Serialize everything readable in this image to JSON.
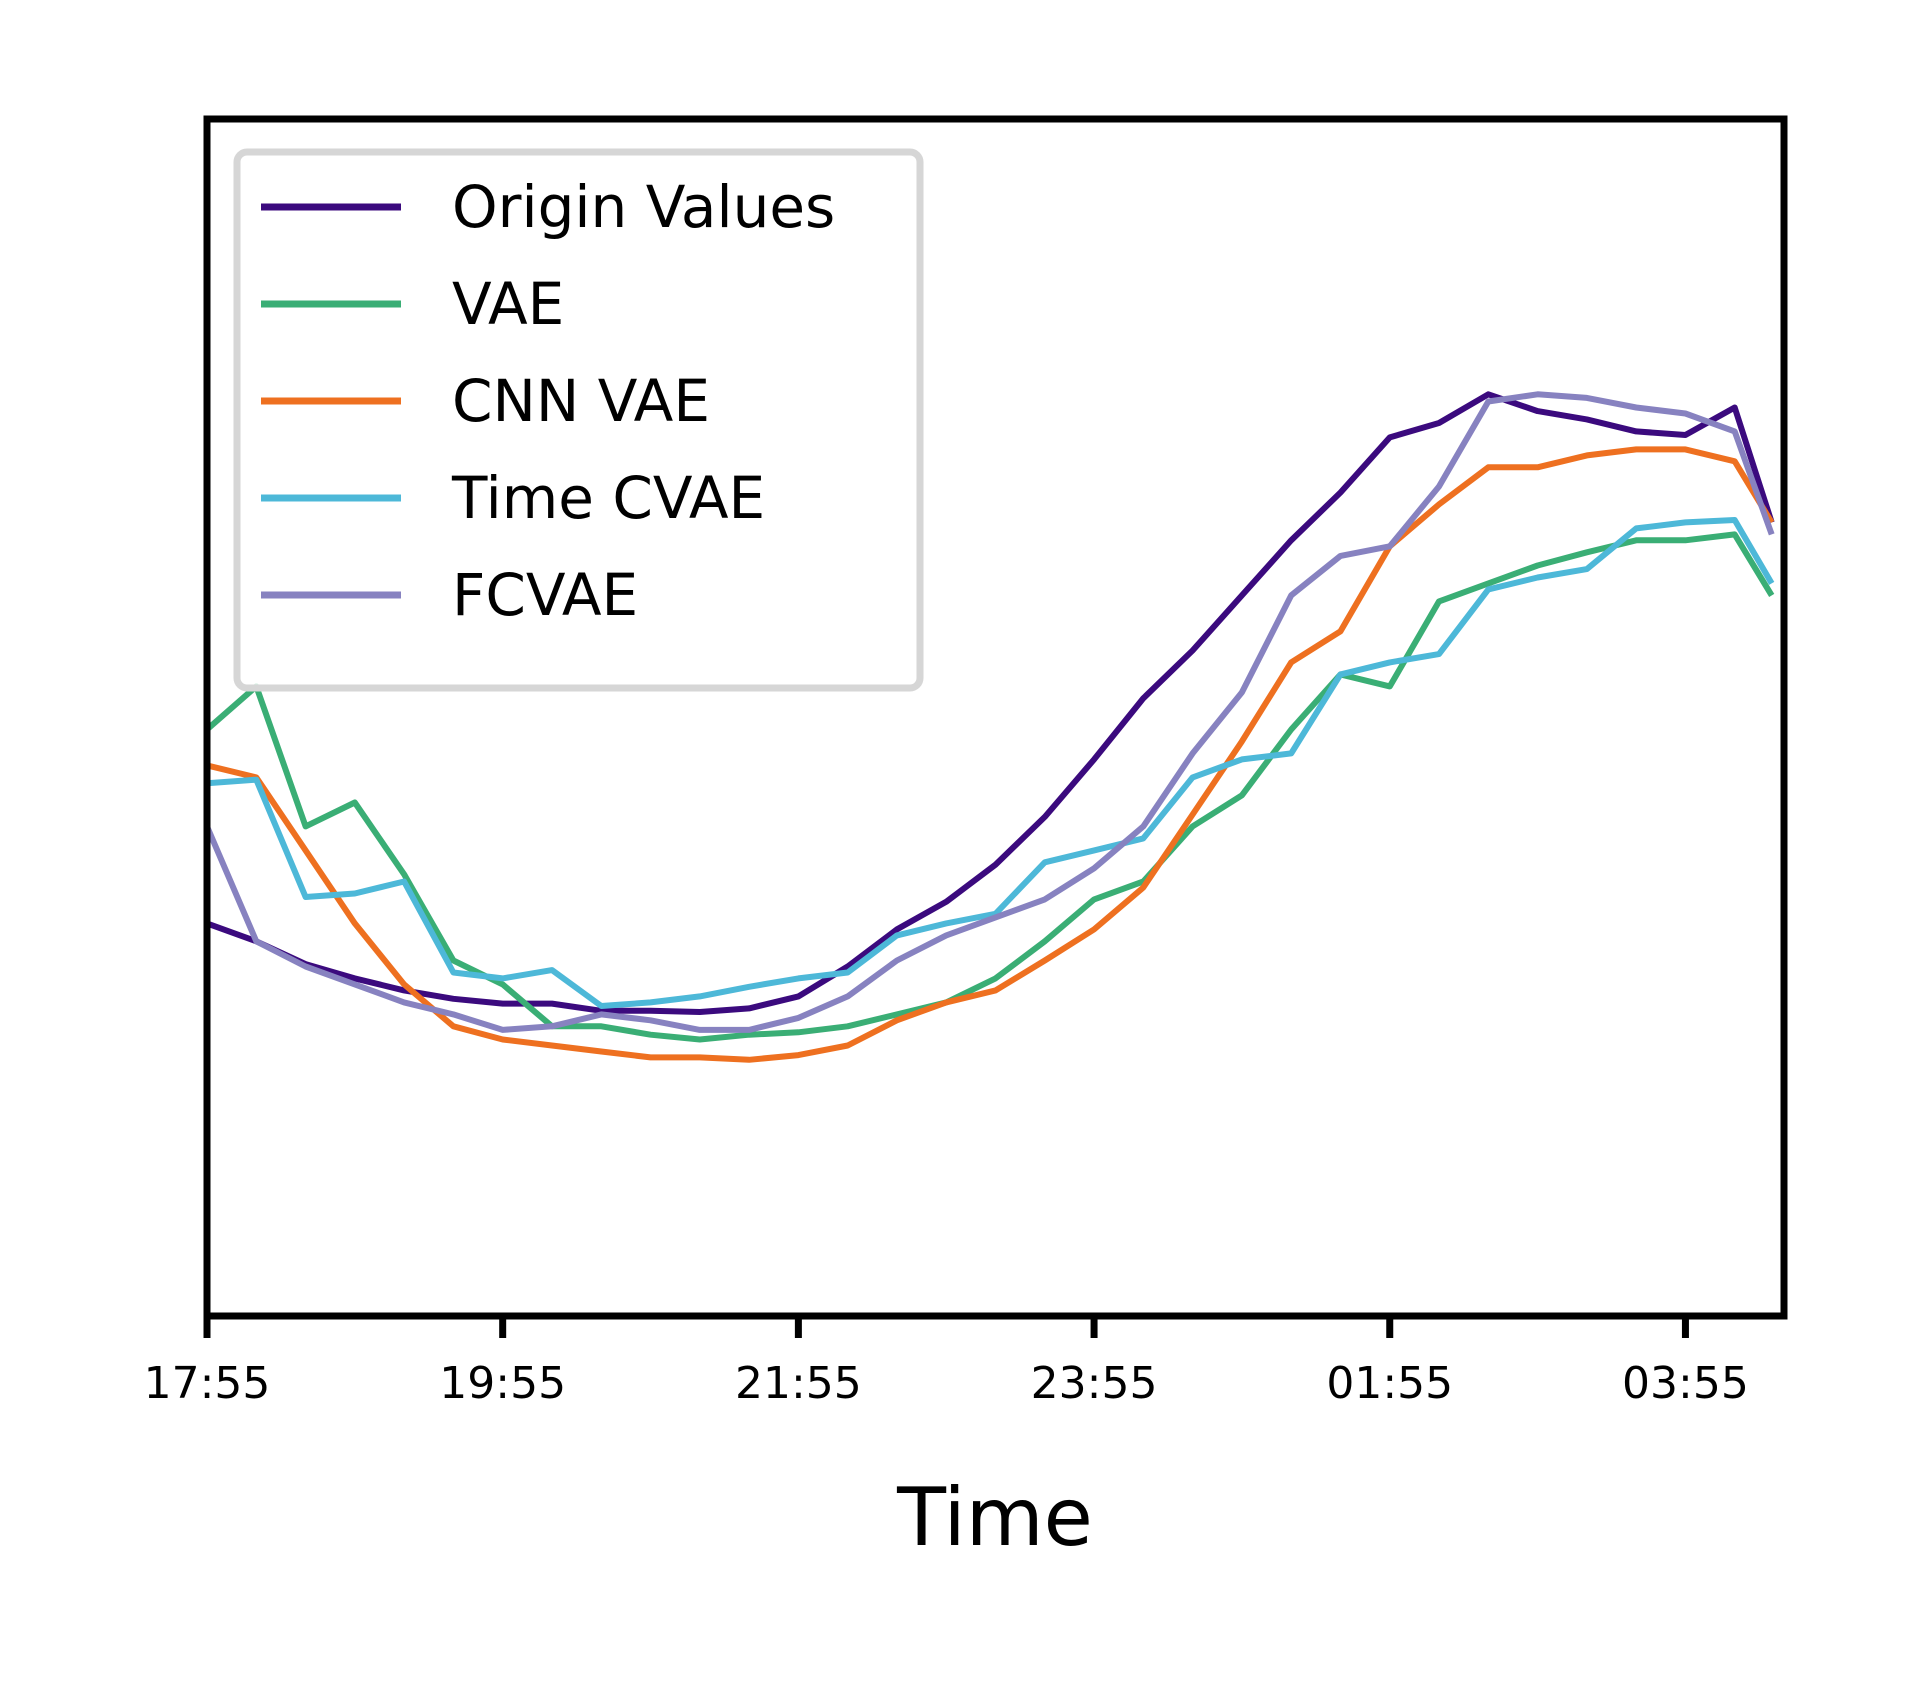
{
  "chart_data": {
    "type": "line",
    "xlabel": "Time",
    "x": [
      0,
      20,
      40,
      60,
      80,
      100,
      120,
      140,
      160,
      180,
      200,
      220,
      240,
      260,
      280,
      300,
      320,
      340,
      360,
      380,
      400,
      420,
      440,
      460,
      480,
      500,
      520,
      540,
      560,
      580,
      600,
      620,
      635
    ],
    "xlim": [
      0,
      640
    ],
    "xticks": [
      {
        "value": 0,
        "label": "17:55"
      },
      {
        "value": 120,
        "label": "19:55"
      },
      {
        "value": 240,
        "label": "21:55"
      },
      {
        "value": 360,
        "label": "23:55"
      },
      {
        "value": 480,
        "label": "01:55"
      },
      {
        "value": 600,
        "label": "03:55"
      }
    ],
    "ylim": [
      0,
      1
    ],
    "legend": "upper left",
    "series": [
      {
        "name": "Origin Values",
        "color": "#3b0a7e",
        "values": [
          0.328,
          0.313,
          0.294,
          0.282,
          0.272,
          0.265,
          0.261,
          0.261,
          0.255,
          0.255,
          0.254,
          0.257,
          0.267,
          0.292,
          0.323,
          0.346,
          0.377,
          0.417,
          0.465,
          0.516,
          0.556,
          0.602,
          0.648,
          0.688,
          0.734,
          0.746,
          0.77,
          0.756,
          0.749,
          0.739,
          0.736,
          0.759,
          0.663
        ]
      },
      {
        "name": "VAE",
        "color": "#3aae75",
        "values": [
          0.49,
          0.526,
          0.409,
          0.429,
          0.369,
          0.297,
          0.277,
          0.242,
          0.242,
          0.235,
          0.231,
          0.235,
          0.237,
          0.242,
          0.252,
          0.262,
          0.282,
          0.313,
          0.348,
          0.363,
          0.409,
          0.435,
          0.49,
          0.536,
          0.526,
          0.597,
          0.612,
          0.627,
          0.638,
          0.648,
          0.648,
          0.653,
          0.602
        ]
      },
      {
        "name": "CNN VAE",
        "color": "#ee7020",
        "values": [
          0.46,
          0.45,
          0.389,
          0.328,
          0.277,
          0.242,
          0.231,
          0.226,
          0.221,
          0.216,
          0.216,
          0.214,
          0.218,
          0.226,
          0.247,
          0.262,
          0.272,
          0.297,
          0.323,
          0.358,
          0.419,
          0.48,
          0.546,
          0.572,
          0.643,
          0.678,
          0.709,
          0.709,
          0.719,
          0.724,
          0.724,
          0.714,
          0.663
        ]
      },
      {
        "name": "Time CVAE",
        "color": "#4db8d8",
        "values": [
          0.445,
          0.448,
          0.35,
          0.353,
          0.363,
          0.287,
          0.282,
          0.289,
          0.259,
          0.262,
          0.267,
          0.275,
          0.282,
          0.287,
          0.318,
          0.328,
          0.336,
          0.379,
          0.389,
          0.399,
          0.45,
          0.465,
          0.47,
          0.536,
          0.546,
          0.553,
          0.607,
          0.617,
          0.624,
          0.658,
          0.663,
          0.665,
          0.612
        ]
      },
      {
        "name": "FCVAE",
        "color": "#8782c0",
        "values": [
          0.409,
          0.313,
          0.292,
          0.277,
          0.262,
          0.252,
          0.239,
          0.242,
          0.252,
          0.247,
          0.239,
          0.239,
          0.249,
          0.267,
          0.297,
          0.318,
          0.333,
          0.348,
          0.374,
          0.409,
          0.47,
          0.521,
          0.602,
          0.635,
          0.643,
          0.693,
          0.764,
          0.77,
          0.767,
          0.759,
          0.754,
          0.739,
          0.653
        ]
      }
    ]
  }
}
